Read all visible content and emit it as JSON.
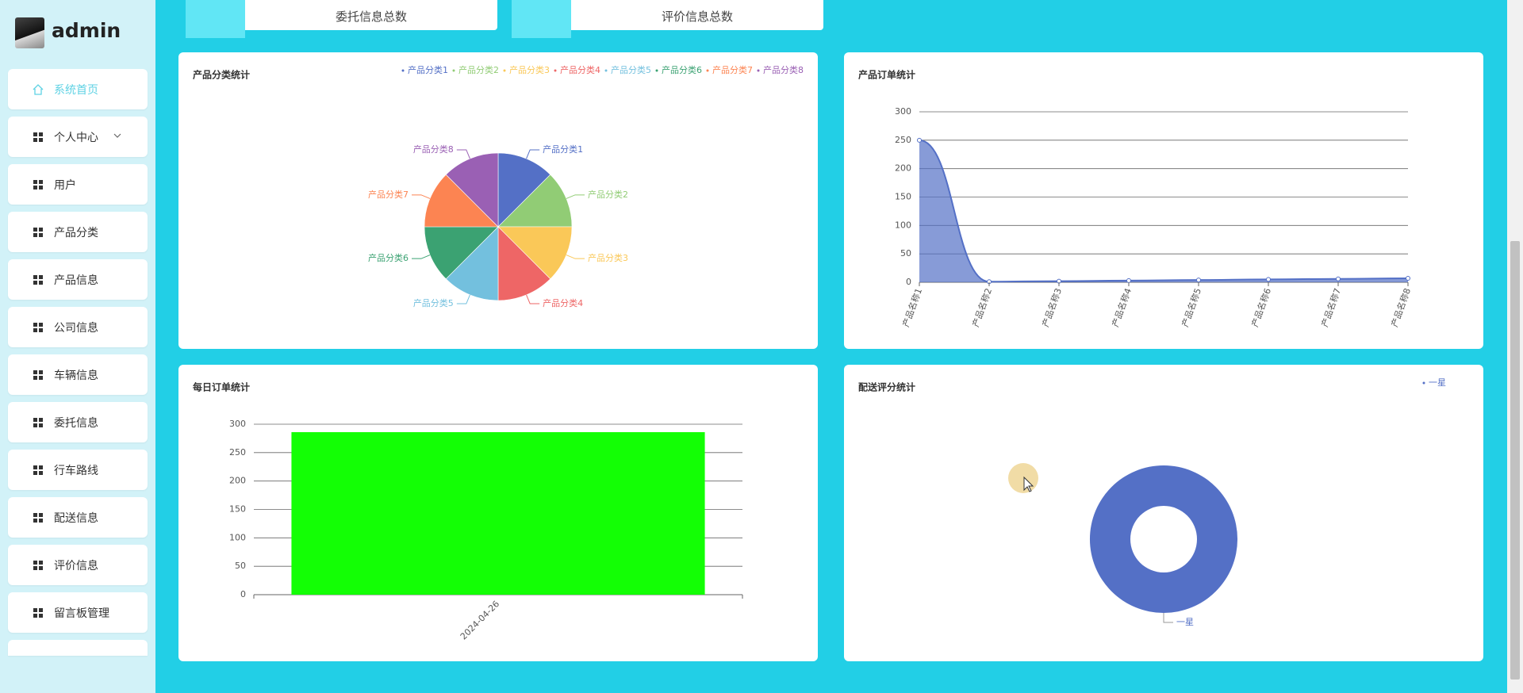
{
  "sidebar": {
    "user": "admin",
    "menu": [
      "系统首页",
      "个人中心",
      "用户",
      "产品分类",
      "产品信息",
      "公司信息",
      "车辆信息",
      "委托信息",
      "行车路线",
      "配送信息",
      "评价信息",
      "留言板管理"
    ]
  },
  "cards": [
    "委托信息总数",
    "评价信息总数"
  ],
  "chart_data": [
    {
      "type": "pie",
      "title": "产品分类统计",
      "categories": [
        "产品分类1",
        "产品分类2",
        "产品分类3",
        "产品分类4",
        "产品分类5",
        "产品分类6",
        "产品分类7",
        "产品分类8"
      ],
      "values": [
        1,
        1,
        1,
        1,
        1,
        1,
        1,
        1
      ],
      "colors": [
        "#5470c6",
        "#91cc75",
        "#fac858",
        "#ee6666",
        "#73c0de",
        "#3ba272",
        "#fc8452",
        "#9a60b4"
      ],
      "legend": "top-right"
    },
    {
      "type": "line",
      "title": "产品订单统计",
      "categories": [
        "产品名称1",
        "产品名称2",
        "产品名称3",
        "产品名称4",
        "产品名称5",
        "产品名称6",
        "产品名称7",
        "产品名称8"
      ],
      "values": [
        250,
        1,
        2,
        3,
        4,
        5,
        6,
        7
      ],
      "color": "#5470c6",
      "area": true,
      "smooth": true,
      "ylim": [
        0,
        300
      ],
      "yticks": [
        0,
        50,
        100,
        150,
        200,
        250,
        300
      ],
      "grid": true
    },
    {
      "type": "bar",
      "title": "每日订单统计",
      "categories": [
        "2024-04-26"
      ],
      "values": [
        286
      ],
      "color": "#13ff05",
      "ylim": [
        0,
        300
      ],
      "yticks": [
        0,
        50,
        100,
        150,
        200,
        250,
        300
      ],
      "grid": true
    },
    {
      "type": "pie",
      "title": "配送评分统计",
      "categories": [
        "一星"
      ],
      "values": [
        1
      ],
      "colors": [
        "#5470c6"
      ],
      "legend": "top-right",
      "donut": true
    }
  ]
}
